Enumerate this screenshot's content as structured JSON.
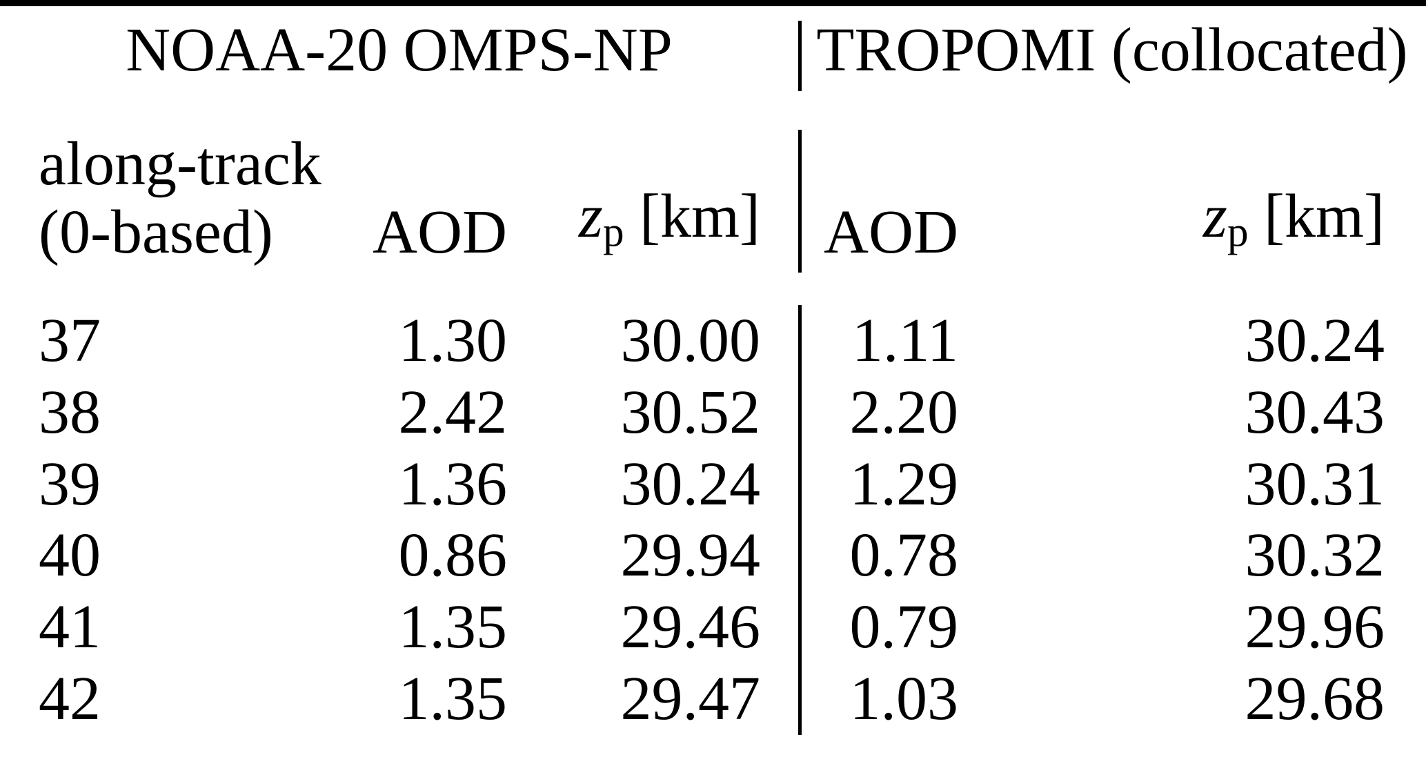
{
  "table": {
    "group_headers": {
      "omps": "NOAA-20 OMPS-NP",
      "tropomi": "TROPOMI (collocated)"
    },
    "columns": {
      "track_line1": "along-track",
      "track_line2": "(0-based)",
      "aod_omps": "AOD",
      "aod_trop": "AOD",
      "zp_var": "z",
      "zp_sub": "p",
      "zp_unit": " [km]"
    },
    "rows": [
      {
        "track": "37",
        "aod_omps": "1.30",
        "zp_omps": "30.00",
        "aod_trop": "1.11",
        "zp_trop": "30.24"
      },
      {
        "track": "38",
        "aod_omps": "2.42",
        "zp_omps": "30.52",
        "aod_trop": "2.20",
        "zp_trop": "30.43"
      },
      {
        "track": "39",
        "aod_omps": "1.36",
        "zp_omps": "30.24",
        "aod_trop": "1.29",
        "zp_trop": "30.31"
      },
      {
        "track": "40",
        "aod_omps": "0.86",
        "zp_omps": "29.94",
        "aod_trop": "0.78",
        "zp_trop": "30.32"
      },
      {
        "track": "41",
        "aod_omps": "1.35",
        "zp_omps": "29.46",
        "aod_trop": "0.79",
        "zp_trop": "29.96"
      },
      {
        "track": "42",
        "aod_omps": "1.35",
        "zp_omps": "29.47",
        "aod_trop": "1.03",
        "zp_trop": "29.68"
      }
    ],
    "colors": {
      "text": "#000000",
      "background": "#ffffff",
      "rule": "#000000"
    }
  },
  "chart_data": {
    "type": "table",
    "title": "",
    "group_headers": [
      "NOAA-20 OMPS-NP",
      "TROPOMI (collocated)"
    ],
    "columns": [
      "along-track (0-based)",
      "AOD (OMPS-NP)",
      "zp [km] (OMPS-NP)",
      "AOD (TROPOMI)",
      "zp [km] (TROPOMI)"
    ],
    "values": [
      [
        37,
        1.3,
        30.0,
        1.11,
        30.24
      ],
      [
        38,
        2.42,
        30.52,
        2.2,
        30.43
      ],
      [
        39,
        1.36,
        30.24,
        1.29,
        30.31
      ],
      [
        40,
        0.86,
        29.94,
        0.78,
        30.32
      ],
      [
        41,
        1.35,
        29.46,
        0.79,
        29.96
      ],
      [
        42,
        1.35,
        29.47,
        1.03,
        29.68
      ]
    ]
  }
}
